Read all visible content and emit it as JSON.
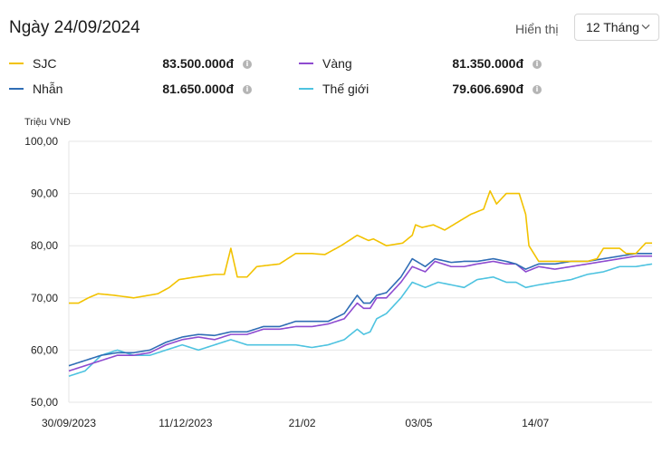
{
  "header": {
    "title": "Ngày 24/09/2024",
    "display_label": "Hiển thị",
    "period": "12 Tháng",
    "chevron_icon": "chevron-down-icon"
  },
  "legend": [
    {
      "name": "SJC",
      "value": "83.500.000đ",
      "color": "#f2c200"
    },
    {
      "name": "Vàng",
      "value": "81.350.000đ",
      "color": "#8e4bd0"
    },
    {
      "name": "Nhẫn",
      "value": "81.650.000đ",
      "color": "#2f6db5"
    },
    {
      "name": "Thế giới",
      "value": "79.606.690đ",
      "color": "#4ec3e0"
    }
  ],
  "info_icon": "info-icon",
  "chart_data": {
    "type": "line",
    "ylabel": "Triệu VNĐ",
    "ylim": [
      50,
      100
    ],
    "yticks": [
      "100,00",
      "90,00",
      "80,00",
      "70,00",
      "60,00",
      "50,00"
    ],
    "ytick_values": [
      100,
      90,
      80,
      70,
      60,
      50
    ],
    "xticks": [
      "30/09/2023",
      "11/12/2023",
      "21/02",
      "03/05",
      "14/07"
    ],
    "xtick_index": [
      0,
      72,
      144,
      216,
      288
    ],
    "n_points": 361,
    "grid": true,
    "series": [
      {
        "name": "SJC",
        "color": "#f2c200",
        "keypoints": [
          [
            0,
            69
          ],
          [
            6,
            69
          ],
          [
            12,
            70
          ],
          [
            18,
            70.8
          ],
          [
            28,
            70.5
          ],
          [
            40,
            70
          ],
          [
            55,
            70.8
          ],
          [
            62,
            72
          ],
          [
            68,
            73.5
          ],
          [
            78,
            74
          ],
          [
            90,
            74.5
          ],
          [
            96,
            74.5
          ],
          [
            100,
            79.5
          ],
          [
            104,
            74
          ],
          [
            110,
            74
          ],
          [
            116,
            76
          ],
          [
            130,
            76.5
          ],
          [
            140,
            78.5
          ],
          [
            150,
            78.5
          ],
          [
            158,
            78.3
          ],
          [
            168,
            80
          ],
          [
            178,
            82
          ],
          [
            185,
            81
          ],
          [
            188,
            81.3
          ],
          [
            196,
            80
          ],
          [
            206,
            80.5
          ],
          [
            212,
            82
          ],
          [
            214,
            84
          ],
          [
            218,
            83.5
          ],
          [
            225,
            84
          ],
          [
            232,
            83
          ],
          [
            240,
            84.5
          ],
          [
            248,
            86
          ],
          [
            256,
            87
          ],
          [
            260,
            90.5
          ],
          [
            264,
            88
          ],
          [
            270,
            90
          ],
          [
            278,
            90
          ],
          [
            282,
            86
          ],
          [
            284,
            80
          ],
          [
            290,
            77
          ],
          [
            300,
            77
          ],
          [
            320,
            77
          ],
          [
            326,
            77.5
          ],
          [
            330,
            79.5
          ],
          [
            340,
            79.5
          ],
          [
            344,
            78.5
          ],
          [
            350,
            78.5
          ],
          [
            356,
            80.5
          ],
          [
            366,
            80.5
          ],
          [
            378,
            80.5
          ],
          [
            380,
            81.5
          ],
          [
            384,
            81.5
          ],
          [
            385,
            83.5
          ]
        ]
      },
      {
        "name": "Vàng",
        "color": "#8e4bd0",
        "keypoints": [
          [
            0,
            56
          ],
          [
            10,
            57
          ],
          [
            20,
            58
          ],
          [
            30,
            59
          ],
          [
            40,
            59
          ],
          [
            50,
            59.5
          ],
          [
            60,
            61
          ],
          [
            70,
            62
          ],
          [
            80,
            62.5
          ],
          [
            90,
            62
          ],
          [
            100,
            63
          ],
          [
            110,
            63
          ],
          [
            120,
            64
          ],
          [
            130,
            64
          ],
          [
            140,
            64.5
          ],
          [
            150,
            64.5
          ],
          [
            160,
            65
          ],
          [
            170,
            66
          ],
          [
            178,
            69
          ],
          [
            182,
            68
          ],
          [
            186,
            68
          ],
          [
            190,
            70
          ],
          [
            196,
            70
          ],
          [
            205,
            73
          ],
          [
            212,
            76
          ],
          [
            220,
            75
          ],
          [
            226,
            77
          ],
          [
            236,
            76
          ],
          [
            244,
            76
          ],
          [
            252,
            76.5
          ],
          [
            262,
            77
          ],
          [
            270,
            76.5
          ],
          [
            276,
            76.5
          ],
          [
            282,
            75
          ],
          [
            290,
            76
          ],
          [
            300,
            75.5
          ],
          [
            310,
            76
          ],
          [
            320,
            76.5
          ],
          [
            330,
            77
          ],
          [
            340,
            77.5
          ],
          [
            350,
            78
          ],
          [
            360,
            78
          ],
          [
            370,
            78.5
          ],
          [
            380,
            79
          ],
          [
            385,
            81.35
          ]
        ]
      },
      {
        "name": "Nhẫn",
        "color": "#2f6db5",
        "keypoints": [
          [
            0,
            57
          ],
          [
            10,
            58
          ],
          [
            20,
            59
          ],
          [
            30,
            59.5
          ],
          [
            40,
            59.5
          ],
          [
            50,
            60
          ],
          [
            60,
            61.5
          ],
          [
            70,
            62.5
          ],
          [
            80,
            63
          ],
          [
            90,
            62.8
          ],
          [
            100,
            63.5
          ],
          [
            110,
            63.5
          ],
          [
            120,
            64.5
          ],
          [
            130,
            64.5
          ],
          [
            140,
            65.5
          ],
          [
            150,
            65.5
          ],
          [
            160,
            65.5
          ],
          [
            170,
            67
          ],
          [
            178,
            70.5
          ],
          [
            182,
            69
          ],
          [
            186,
            69
          ],
          [
            190,
            70.5
          ],
          [
            196,
            71
          ],
          [
            205,
            74
          ],
          [
            212,
            77.5
          ],
          [
            220,
            76
          ],
          [
            226,
            77.5
          ],
          [
            236,
            76.8
          ],
          [
            244,
            77
          ],
          [
            252,
            77
          ],
          [
            262,
            77.5
          ],
          [
            270,
            77
          ],
          [
            276,
            76.5
          ],
          [
            282,
            75.5
          ],
          [
            290,
            76.5
          ],
          [
            300,
            76.5
          ],
          [
            310,
            77
          ],
          [
            320,
            77
          ],
          [
            330,
            77.5
          ],
          [
            340,
            78
          ],
          [
            350,
            78.5
          ],
          [
            360,
            78.5
          ],
          [
            370,
            79
          ],
          [
            380,
            79.5
          ],
          [
            385,
            81.65
          ]
        ]
      },
      {
        "name": "Thế giới",
        "color": "#4ec3e0",
        "keypoints": [
          [
            0,
            55
          ],
          [
            10,
            56
          ],
          [
            20,
            59
          ],
          [
            30,
            60
          ],
          [
            40,
            59
          ],
          [
            50,
            59
          ],
          [
            60,
            60
          ],
          [
            70,
            61
          ],
          [
            80,
            60
          ],
          [
            90,
            61
          ],
          [
            100,
            62
          ],
          [
            110,
            61
          ],
          [
            120,
            61
          ],
          [
            130,
            61
          ],
          [
            140,
            61
          ],
          [
            150,
            60.5
          ],
          [
            160,
            61
          ],
          [
            170,
            62
          ],
          [
            178,
            64
          ],
          [
            182,
            63
          ],
          [
            186,
            63.5
          ],
          [
            190,
            66
          ],
          [
            196,
            67
          ],
          [
            205,
            70
          ],
          [
            212,
            73
          ],
          [
            220,
            72
          ],
          [
            228,
            73
          ],
          [
            236,
            72.5
          ],
          [
            244,
            72
          ],
          [
            252,
            73.5
          ],
          [
            262,
            74
          ],
          [
            270,
            73
          ],
          [
            276,
            73
          ],
          [
            282,
            72
          ],
          [
            290,
            72.5
          ],
          [
            300,
            73
          ],
          [
            310,
            73.5
          ],
          [
            320,
            74.5
          ],
          [
            330,
            75
          ],
          [
            340,
            76
          ],
          [
            350,
            76
          ],
          [
            360,
            76.5
          ],
          [
            370,
            77
          ],
          [
            380,
            77.5
          ],
          [
            385,
            79.6
          ]
        ]
      }
    ]
  }
}
